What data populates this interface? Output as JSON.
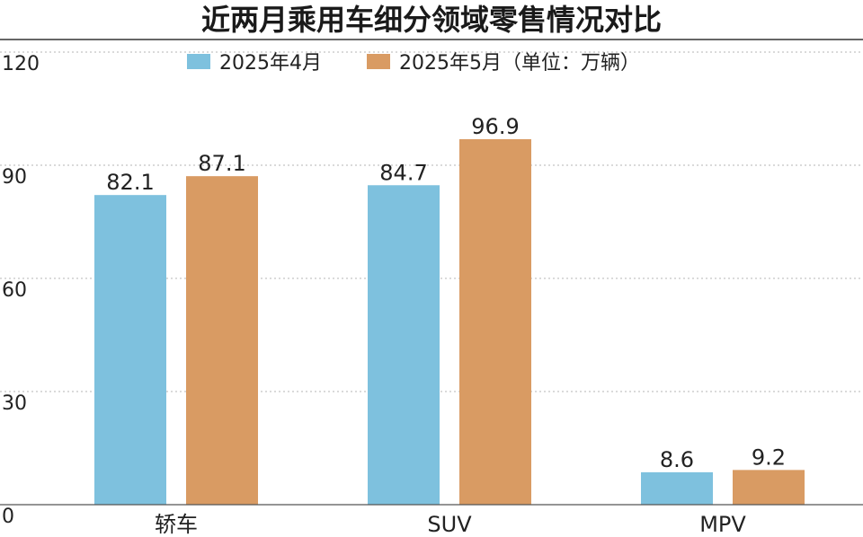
{
  "chart_data": {
    "type": "bar",
    "title": "近两月乘用车细分领域零售情况对比",
    "unit_note": "（单位：万辆）",
    "categories": [
      "轿车",
      "SUV",
      "MPV"
    ],
    "series": [
      {
        "name": "2025年4月",
        "color": "#7ec1de",
        "values": [
          82.1,
          84.7,
          8.6
        ]
      },
      {
        "name": "2025年5月",
        "color": "#d99b63",
        "values": [
          87.1,
          96.9,
          9.2
        ]
      }
    ],
    "ylim": [
      0,
      120
    ],
    "yticks": [
      0,
      30,
      60,
      90,
      120
    ],
    "grid": true,
    "legend": "top-center"
  }
}
